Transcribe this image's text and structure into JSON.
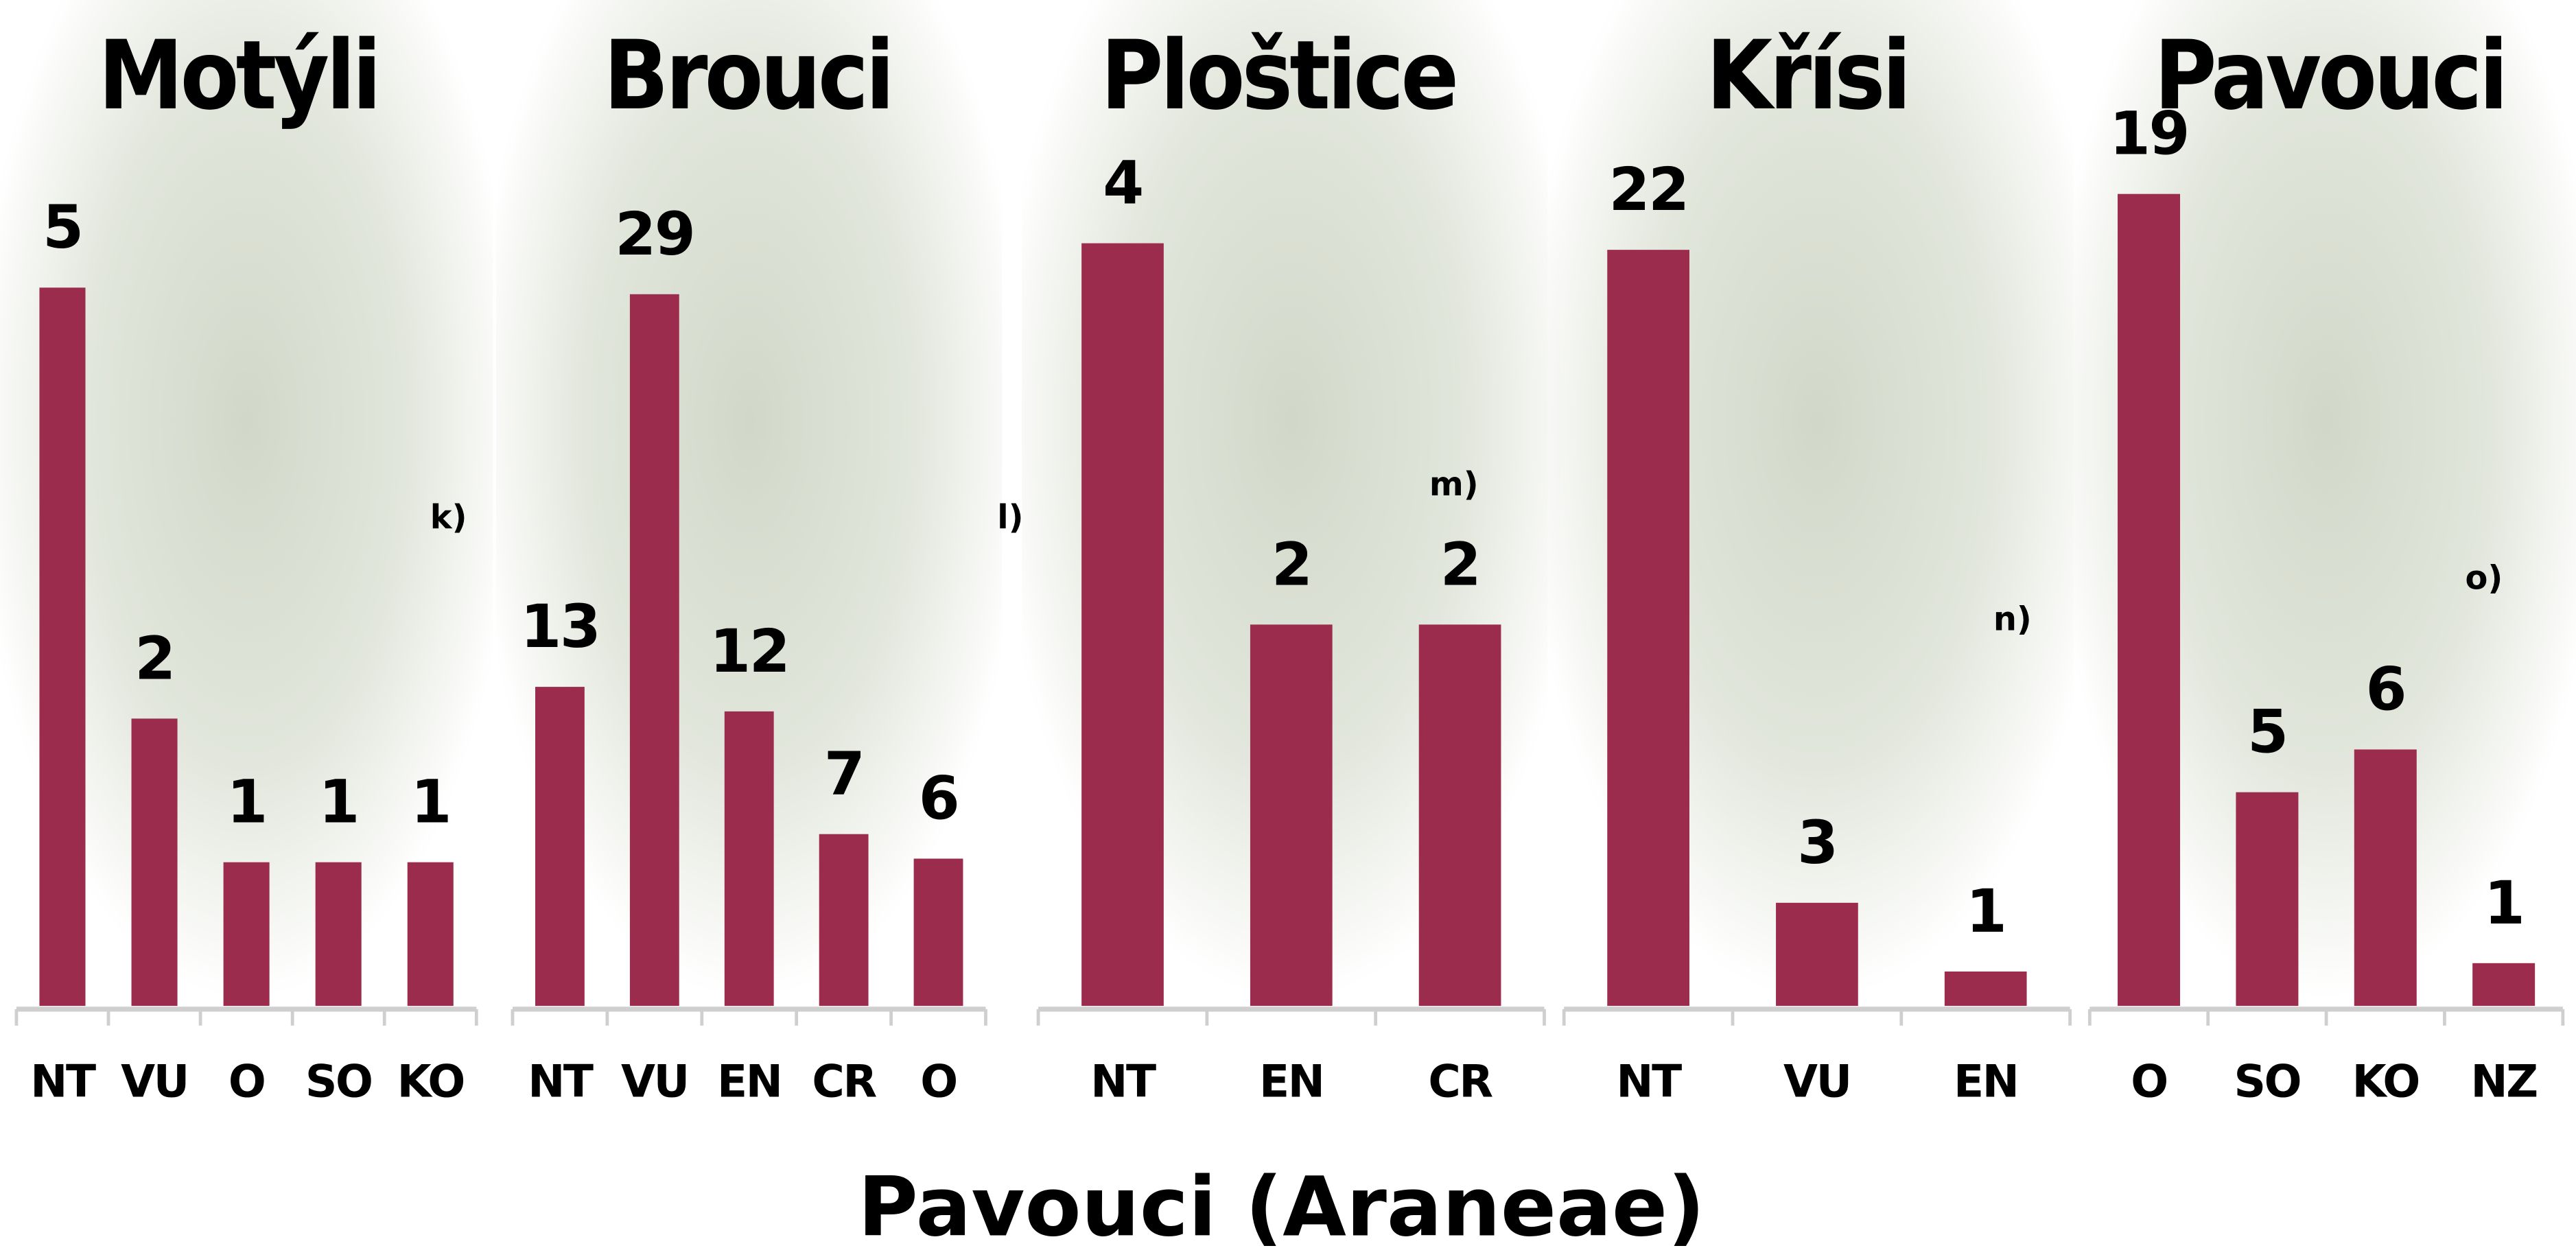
{
  "chart_data": [
    {
      "type": "bar",
      "title": "Motýli",
      "categories": [
        "NT",
        "VU",
        "O",
        "SO",
        "KO"
      ],
      "values": [
        5,
        2,
        1,
        1,
        1
      ],
      "color": "#9b2c4e",
      "annotation": "k)"
    },
    {
      "type": "bar",
      "title": "Brouci",
      "categories": [
        "NT",
        "VU",
        "EN",
        "CR",
        "O"
      ],
      "values": [
        13,
        29,
        12,
        7,
        6
      ],
      "color": "#9b2c4e",
      "annotation": "l)"
    },
    {
      "type": "bar",
      "title": "Ploštice",
      "categories": [
        "NT",
        "EN",
        "CR"
      ],
      "values": [
        4,
        2,
        2
      ],
      "color": "#9b2c4e",
      "annotation": "m)"
    },
    {
      "type": "bar",
      "title": "Křísi",
      "categories": [
        "NT",
        "VU",
        "EN"
      ],
      "values": [
        22,
        3,
        1
      ],
      "color": "#9b2c4e",
      "annotation": "n)"
    },
    {
      "type": "bar",
      "title": "Pavouci",
      "categories": [
        "O",
        "SO",
        "KO",
        "NZ"
      ],
      "values": [
        19,
        5,
        6,
        1
      ],
      "color": "#9b2c4e",
      "annotation": "o)"
    }
  ],
  "caption": "Pavouci (Araneae)"
}
